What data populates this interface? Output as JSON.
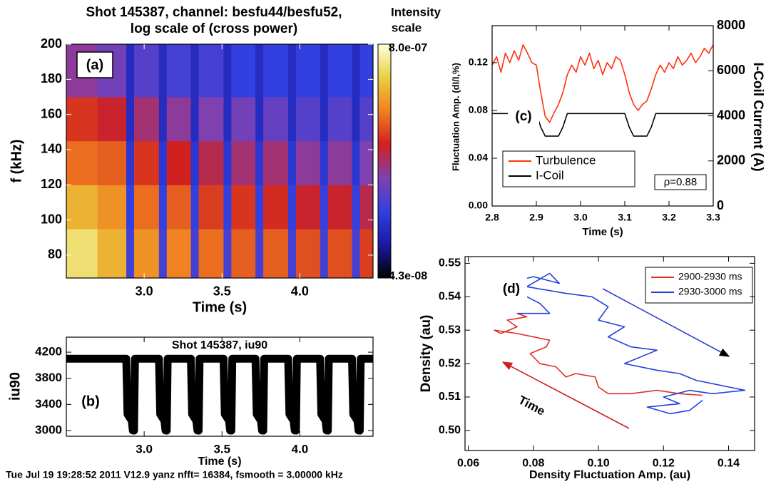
{
  "chart_data": [
    {
      "type": "heatmap",
      "title": [
        "Shot 145387, channel: besfu44/besfu52,",
        "log scale of (cross power)"
      ],
      "panel_label": "(a)",
      "xlabel": "Time (s)",
      "ylabel": "f (kHz)",
      "xlim": [
        2.5,
        4.47
      ],
      "xticks": [
        {
          "value": 3,
          "label": "3.0"
        },
        3.5,
        {
          "value": 4,
          "label": "4.0"
        }
      ],
      "ylim": [
        67,
        200
      ],
      "yticks": [
        80,
        100,
        120,
        140,
        160,
        180,
        200
      ],
      "xbins": [
        2.5,
        2.7,
        2.885,
        2.935,
        3.095,
        3.145,
        3.3,
        3.35,
        3.51,
        3.56,
        3.715,
        3.765,
        3.925,
        3.975,
        4.13,
        4.18,
        4.335,
        4.385,
        4.47
      ],
      "ybins": [
        67,
        95,
        120,
        145,
        170,
        200
      ],
      "z": [
        [
          6e-07,
          4.5e-07,
          1.1e-07,
          3.8e-07,
          1.1e-07,
          3.5e-07,
          1.1e-07,
          3.2e-07,
          1.1e-07,
          3e-07,
          1.1e-07,
          3e-07,
          1.1e-07,
          2.8e-07,
          1.1e-07,
          2.8e-07,
          1.1e-07,
          2.6e-07
        ],
        [
          4.5e-07,
          3.8e-07,
          1e-07,
          3.2e-07,
          1e-07,
          3e-07,
          1e-07,
          2.6e-07,
          1e-07,
          2.5e-07,
          1e-07,
          2.4e-07,
          1e-07,
          2.2e-07,
          1e-07,
          2.2e-07,
          1e-07,
          2e-07
        ],
        [
          3.2e-07,
          3e-07,
          9e-08,
          2.5e-07,
          9e-08,
          2.3e-07,
          9e-08,
          2e-07,
          9e-08,
          1.8e-07,
          9e-08,
          1.8e-07,
          9e-08,
          1.6e-07,
          9e-08,
          1.6e-07,
          9e-08,
          1.5e-07
        ],
        [
          2.5e-07,
          2.2e-07,
          8e-08,
          1.8e-07,
          8e-08,
          1.6e-07,
          8e-08,
          1.5e-07,
          8e-08,
          1.4e-07,
          8e-08,
          1.3e-07,
          8e-08,
          1.2e-07,
          8e-08,
          1.2e-07,
          8e-08,
          1.2e-07
        ],
        [
          1.6e-07,
          1.4e-07,
          8e-08,
          1.2e-07,
          8e-08,
          1.1e-07,
          8e-08,
          1.1e-07,
          8e-08,
          1e-07,
          8e-08,
          1e-07,
          8e-08,
          1e-07,
          8e-08,
          1e-07,
          8e-08,
          1e-07
        ]
      ],
      "zlim": [
        4.3e-08,
        8e-07
      ],
      "zticks": [
        {
          "value": 4.3e-08,
          "label": "4.3e-08"
        },
        {
          "value": 8e-07,
          "label": "8.0e-07"
        }
      ],
      "colorbar_label": [
        "Intensity",
        "scale"
      ],
      "colormap": [
        "#000000",
        "#1a1aa0",
        "#3040e0",
        "#8040b0",
        "#d02020",
        "#f08020",
        "#e8d040",
        "#ffffe0"
      ],
      "log_color_scale": true
    },
    {
      "type": "line",
      "title": "Shot 145387, iu90",
      "panel_label": "(b)",
      "xlabel": "Time (s)",
      "ylabel": "iu90",
      "xlim": [
        2.5,
        4.47
      ],
      "xticks": [
        {
          "value": 3,
          "label": "3.0"
        },
        3.5,
        {
          "value": 4,
          "label": "4.0"
        }
      ],
      "ylim": [
        2913,
        4430
      ],
      "yticks": [
        3000,
        3400,
        3800,
        4200
      ],
      "color": "#000000",
      "x": [
        2.5,
        2.885,
        2.893,
        2.92,
        2.927,
        2.935,
        2.941,
        3.095,
        3.103,
        3.13,
        3.137,
        3.145,
        3.151,
        3.3,
        3.308,
        3.335,
        3.342,
        3.35,
        3.356,
        3.51,
        3.518,
        3.545,
        3.552,
        3.56,
        3.566,
        3.715,
        3.723,
        3.75,
        3.757,
        3.765,
        3.771,
        3.925,
        3.933,
        3.96,
        3.967,
        3.975,
        3.981,
        4.13,
        4.138,
        4.165,
        4.172,
        4.18,
        4.186,
        4.335,
        4.343,
        4.37,
        4.377,
        4.385,
        4.391,
        4.47
      ],
      "values": [
        4100,
        4100,
        3250,
        3150,
        3000,
        3000,
        4100,
        4100,
        3250,
        3150,
        3000,
        3000,
        4100,
        4100,
        3250,
        3150,
        3000,
        3000,
        4100,
        4100,
        3250,
        3150,
        3000,
        3000,
        4100,
        4100,
        3250,
        3150,
        3000,
        3000,
        4100,
        4100,
        3250,
        3150,
        3000,
        3000,
        4100,
        4100,
        3250,
        3150,
        3000,
        3000,
        4100,
        4100,
        3250,
        3150,
        3000,
        3000,
        4100,
        4100
      ]
    },
    {
      "type": "line",
      "panel_label": "(c)",
      "xlabel": "Time (s)",
      "ylabel": "Fluctuation Amp. (dI/I,%)",
      "y2label": "I-Coil Current (A)",
      "xlim": [
        2.8,
        3.3
      ],
      "xticks": [
        2.8,
        2.9,
        {
          "value": 3,
          "label": "3.0"
        },
        3.1,
        3.2,
        3.3
      ],
      "ylim": [
        0,
        0.151
      ],
      "yticks": [
        {
          "value": 0,
          "label": "0.00"
        },
        0.04,
        0.08,
        0.12
      ],
      "y2lim": [
        0,
        8000
      ],
      "y2ticks": [
        0,
        2000,
        4000,
        6000,
        8000
      ],
      "x": [
        2.8,
        2.81,
        2.82,
        2.83,
        2.84,
        2.85,
        2.86,
        2.87,
        2.88,
        2.89,
        2.9,
        2.91,
        2.92,
        2.93,
        2.94,
        2.95,
        2.96,
        2.97,
        2.98,
        2.99,
        3.0,
        3.01,
        3.02,
        3.03,
        3.04,
        3.05,
        3.06,
        3.07,
        3.08,
        3.09,
        3.1,
        3.11,
        3.12,
        3.13,
        3.14,
        3.15,
        3.16,
        3.17,
        3.18,
        3.19,
        3.2,
        3.21,
        3.22,
        3.23,
        3.24,
        3.25,
        3.26,
        3.27,
        3.28,
        3.29,
        3.3
      ],
      "series": [
        {
          "name": "Turbulence",
          "color": "#ff3010",
          "values": [
            0.118,
            0.125,
            0.112,
            0.128,
            0.12,
            0.13,
            0.122,
            0.135,
            0.128,
            0.12,
            0.118,
            0.095,
            0.075,
            0.07,
            0.078,
            0.085,
            0.095,
            0.11,
            0.118,
            0.112,
            0.125,
            0.118,
            0.128,
            0.115,
            0.122,
            0.11,
            0.12,
            0.115,
            0.125,
            0.122,
            0.11,
            0.095,
            0.085,
            0.08,
            0.085,
            0.088,
            0.098,
            0.11,
            0.118,
            0.112,
            0.12,
            0.115,
            0.125,
            0.118,
            0.122,
            0.128,
            0.12,
            0.125,
            0.132,
            0.128,
            0.135
          ]
        },
        {
          "name": "I-Coil",
          "color": "#000000",
          "axis": "y2",
          "values": [
            4100,
            4100,
            4100,
            4100,
            4100,
            4100,
            4100,
            4100,
            4100,
            4100,
            4100,
            3500,
            3100,
            3100,
            3100,
            3100,
            3500,
            4100,
            4100,
            4100,
            4100,
            4100,
            4100,
            4100,
            4100,
            4100,
            4100,
            4100,
            4100,
            4100,
            4100,
            3500,
            3100,
            3100,
            3100,
            3100,
            3500,
            4100,
            4100,
            4100,
            4100,
            4100,
            4100,
            4100,
            4100,
            4100,
            4100,
            4100,
            4100,
            4100,
            4100
          ]
        }
      ],
      "annotation": "ρ=0.88",
      "legend": "lower left"
    },
    {
      "type": "line",
      "panel_label": "(d)",
      "xlabel": "Density Fluctuation Amp. (au)",
      "ylabel": "Density (au)",
      "xlim": [
        0.059,
        0.148
      ],
      "xticks": [
        0.06,
        0.08,
        {
          "value": 0.1,
          "label": "0.10"
        },
        0.12,
        0.14
      ],
      "ylim": [
        0.494,
        0.552
      ],
      "yticks": [
        {
          "value": 0.5,
          "label": "0.50"
        },
        0.51,
        0.52,
        0.53,
        0.54,
        0.55
      ],
      "series": [
        {
          "name": "2900-2930 ms",
          "color": "#e03020",
          "x": [
            0.132,
            0.125,
            0.118,
            0.11,
            0.103,
            0.1,
            0.099,
            0.093,
            0.09,
            0.087,
            0.082,
            0.079,
            0.084,
            0.085,
            0.08,
            0.075,
            0.068,
            0.07,
            0.075,
            0.072,
            0.078,
            0.075
          ],
          "values": [
            0.5105,
            0.511,
            0.512,
            0.511,
            0.511,
            0.513,
            0.516,
            0.517,
            0.516,
            0.519,
            0.52,
            0.523,
            0.525,
            0.527,
            0.528,
            0.529,
            0.53,
            0.529,
            0.531,
            0.533,
            0.534,
            0.535
          ]
        },
        {
          "name": "2930-3000 ms",
          "color": "#2040e0",
          "x": [
            0.075,
            0.085,
            0.082,
            0.076,
            0.072,
            0.08,
            0.088,
            0.085,
            0.078,
            0.09,
            0.098,
            0.103,
            0.1,
            0.108,
            0.103,
            0.11,
            0.118,
            0.113,
            0.108,
            0.118,
            0.125,
            0.13,
            0.14,
            0.145,
            0.135,
            0.128,
            0.12,
            0.125,
            0.115,
            0.122,
            0.128,
            0.132
          ],
          "values": [
            0.535,
            0.535,
            0.538,
            0.541,
            0.544,
            0.546,
            0.544,
            0.547,
            0.543,
            0.541,
            0.54,
            0.537,
            0.533,
            0.531,
            0.528,
            0.525,
            0.524,
            0.522,
            0.52,
            0.518,
            0.517,
            0.515,
            0.513,
            0.512,
            0.511,
            0.512,
            0.51,
            0.508,
            0.507,
            0.505,
            0.506,
            0.509
          ]
        }
      ],
      "annotation": "Time",
      "legend": "upper right"
    }
  ],
  "footer": "Tue Jul 19 19:28:52 2011 V12.9 yanz nfft= 16384, fsmooth = 3.00000 kHz"
}
